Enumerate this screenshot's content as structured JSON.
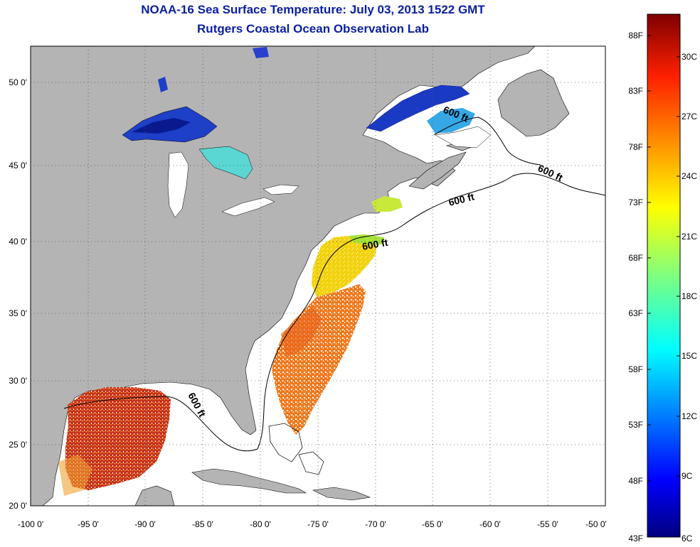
{
  "header": {
    "title": "NOAA-16 Sea Surface Temperature:  July 03, 2013 1522 GMT",
    "subtitle": "Rutgers Coastal Ocean Observation Lab"
  },
  "map": {
    "lon_ticks": [
      "-100 0'",
      "-95 0'",
      "-90 0'",
      "-85 0'",
      "-80 0'",
      "-75 0'",
      "-70 0'",
      "-65 0'",
      "-60 0'",
      "-55 0'",
      "-50 0'"
    ],
    "lat_ticks": [
      "20 0'",
      "25 0'",
      "30 0'",
      "35 0'",
      "40 0'",
      "45 0'",
      "50 0'"
    ],
    "lon_range": [
      -100,
      -50
    ],
    "lat_range": [
      20,
      52.5
    ],
    "graticule": "dotted",
    "contour_label": "600 ft",
    "land_color": "#b4b4b4",
    "ocean_color": "#ffffff"
  },
  "colorbar": {
    "min_label": "43F",
    "max_label_c": "6C",
    "fahrenheit_labels": [
      "88F",
      "83F",
      "78F",
      "73F",
      "68F",
      "63F",
      "58F",
      "53F",
      "48F"
    ],
    "celsius_labels": [
      "30C",
      "27C",
      "24C",
      "21C",
      "18C",
      "15C",
      "12C",
      "9C"
    ]
  }
}
